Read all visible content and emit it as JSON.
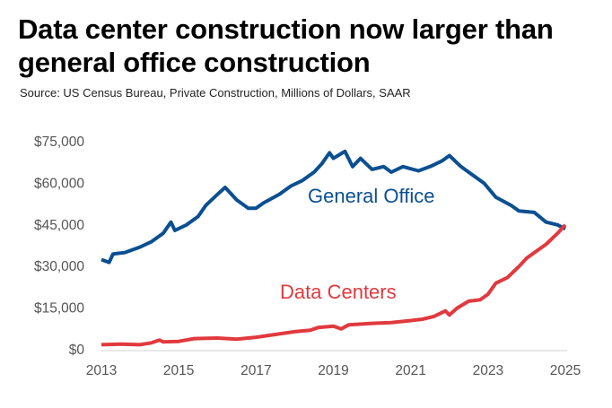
{
  "chart_data": {
    "type": "line",
    "title": "Data center construction now larger than general office construction",
    "subtitle": "Source: US Census Bureau, Private Construction, Millions of Dollars, SAAR",
    "xlabel": "",
    "ylabel": "",
    "xlim": [
      2013,
      2025
    ],
    "ylim": [
      0,
      75000
    ],
    "x_ticks": [
      "2013",
      "2015",
      "2017",
      "2019",
      "2021",
      "2023",
      "2025"
    ],
    "y_ticks": [
      "$0",
      "$15,000",
      "$30,000",
      "$45,000",
      "$60,000",
      "$75,000"
    ],
    "grid": false,
    "legend": "inline labels",
    "series": [
      {
        "name": "General Office",
        "color": "#0b4f91",
        "x": [
          2013.0,
          2013.2,
          2013.3,
          2013.6,
          2014.0,
          2014.3,
          2014.6,
          2014.8,
          2014.9,
          2015.2,
          2015.5,
          2015.7,
          2016.0,
          2016.2,
          2016.5,
          2016.8,
          2017.0,
          2017.2,
          2017.6,
          2017.9,
          2018.2,
          2018.5,
          2018.7,
          2018.9,
          2019.0,
          2019.3,
          2019.5,
          2019.7,
          2020.0,
          2020.3,
          2020.5,
          2020.8,
          2021.2,
          2021.5,
          2021.8,
          2022.0,
          2022.3,
          2022.6,
          2022.9,
          2023.2,
          2023.6,
          2023.8,
          2024.2,
          2024.5,
          2024.8,
          2025.0
        ],
        "values": [
          32500,
          31500,
          34500,
          35000,
          37000,
          39000,
          42000,
          46000,
          43000,
          45000,
          48000,
          52000,
          56000,
          58500,
          54000,
          51000,
          51000,
          53000,
          56000,
          59000,
          61000,
          64000,
          67000,
          71000,
          69000,
          71500,
          66000,
          69000,
          65000,
          66000,
          64000,
          66000,
          64500,
          66000,
          68000,
          70000,
          66000,
          63000,
          60000,
          55000,
          52000,
          50000,
          49500,
          46000,
          45000,
          43500
        ]
      },
      {
        "name": "Data Centers",
        "color": "#e0393e",
        "x": [
          2013.0,
          2013.5,
          2014.0,
          2014.3,
          2014.5,
          2014.6,
          2015.0,
          2015.4,
          2016.0,
          2016.5,
          2017.0,
          2017.5,
          2018.0,
          2018.4,
          2018.6,
          2019.0,
          2019.2,
          2019.4,
          2020.0,
          2020.5,
          2021.0,
          2021.3,
          2021.6,
          2021.9,
          2022.0,
          2022.2,
          2022.5,
          2022.8,
          2023.0,
          2023.2,
          2023.5,
          2023.8,
          2024.0,
          2024.3,
          2024.5,
          2024.8,
          2025.0
        ],
        "values": [
          1800,
          2000,
          1800,
          2500,
          3500,
          2800,
          3000,
          4000,
          4200,
          3800,
          4500,
          5500,
          6500,
          7000,
          8000,
          8500,
          7500,
          9000,
          9500,
          9800,
          10500,
          11000,
          12000,
          14000,
          12500,
          15000,
          17500,
          18000,
          20000,
          24000,
          26000,
          30000,
          33000,
          36000,
          38000,
          42000,
          45000
        ]
      }
    ]
  }
}
